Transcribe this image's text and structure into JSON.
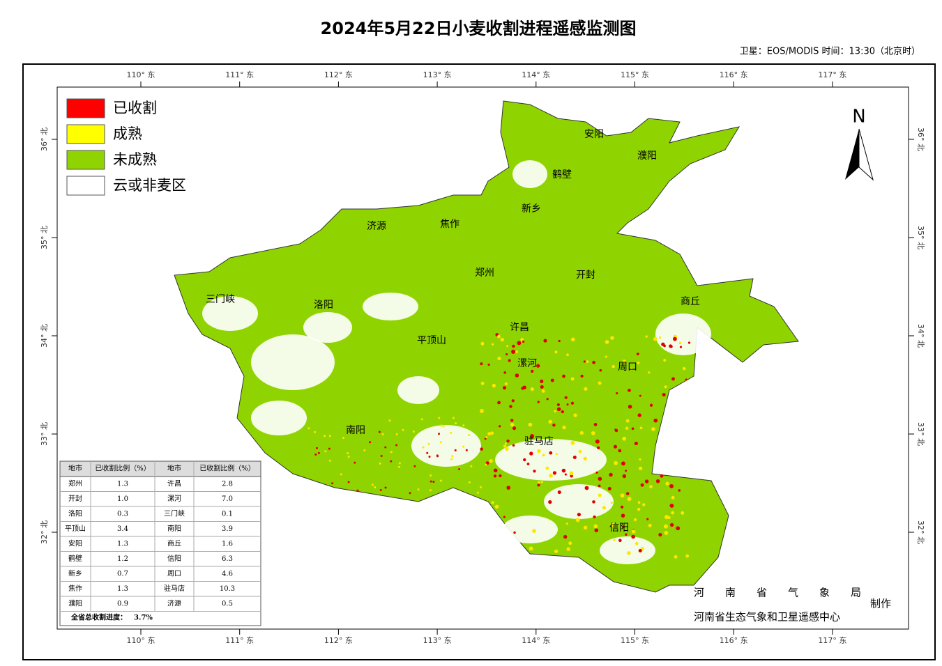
{
  "title": "2024年5月22日小麦收割进程遥感监测图",
  "subtitle": "卫星：EOS/MODIS 时间：13:30（北京时）",
  "legend": [
    "已收割",
    "成熟",
    "未成熟",
    "云或非麦区"
  ],
  "longitudes": [
    "110° 东",
    "111° 东",
    "112° 东",
    "113° 东",
    "114° 东",
    "115° 东",
    "116° 东",
    "117° 东"
  ],
  "latitudes": [
    "36° 北",
    "35° 北",
    "34° 北",
    "33° 北",
    "32° 北"
  ],
  "north": "N",
  "cities": [
    "安阳",
    "濮阳",
    "鹤壁",
    "新乡",
    "焦作",
    "济源",
    "郑州",
    "开封",
    "商丘",
    "三门峡",
    "洛阳",
    "许昌",
    "平顶山",
    "漯河",
    "周口",
    "南阳",
    "驻马店",
    "信阳"
  ],
  "table": {
    "header": [
      "地市",
      "已收割比例（%）",
      "地市",
      "已收割比例（%）"
    ],
    "rows": [
      [
        "郑州",
        "1.3",
        "许昌",
        "2.8"
      ],
      [
        "开封",
        "1.0",
        "漯河",
        "7.0"
      ],
      [
        "洛阳",
        "0.3",
        "三门峡",
        "0.1"
      ],
      [
        "平顶山",
        "3.4",
        "南阳",
        "3.9"
      ],
      [
        "安阳",
        "1.3",
        "商丘",
        "1.6"
      ],
      [
        "鹤壁",
        "1.2",
        "信阳",
        "6.3"
      ],
      [
        "新乡",
        "0.7",
        "周口",
        "4.6"
      ],
      [
        "焦作",
        "1.3",
        "驻马店",
        "10.3"
      ],
      [
        "濮阳",
        "0.9",
        "济源",
        "0.5"
      ]
    ],
    "total_label": "全省总收割进度：",
    "total_value": "3.7%"
  },
  "footer": {
    "agency": "河南省气象局",
    "made": "制作",
    "center": "河南省生态气象和卫星遥感中心"
  }
}
